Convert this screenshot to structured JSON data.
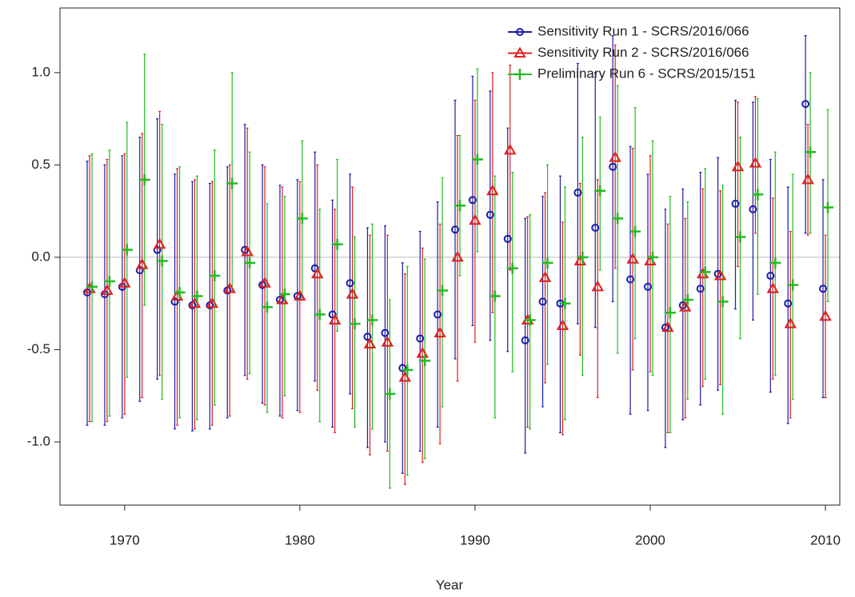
{
  "chart_data": {
    "type": "errorbar",
    "xlabel": "Year",
    "x": [
      1968,
      1969,
      1970,
      1971,
      1972,
      1973,
      1974,
      1975,
      1976,
      1977,
      1978,
      1979,
      1980,
      1981,
      1982,
      1983,
      1984,
      1985,
      1986,
      1987,
      1988,
      1989,
      1990,
      1991,
      1992,
      1993,
      1994,
      1995,
      1996,
      1997,
      1998,
      1999,
      2000,
      2001,
      2002,
      2003,
      2004,
      2005,
      2006,
      2007,
      2008,
      2009,
      2010
    ],
    "xlim": [
      1966.31,
      2010.82
    ],
    "ylim": [
      -1.342,
      1.35
    ],
    "xticks": [
      1970,
      1980,
      1990,
      2000,
      2010
    ],
    "yticks": [
      {
        "value": -1.0,
        "label": "-1.0"
      },
      -0.5,
      {
        "value": 0.0,
        "label": "0.0"
      },
      0.5,
      {
        "value": 1.0,
        "label": "1.0"
      }
    ],
    "hline": 0,
    "legend": "top-right",
    "series": [
      {
        "name": "Sensitivity Run 1 - SCRS/2016/066",
        "color": "#1c1ca8",
        "marker": "circle",
        "values": [
          -0.19,
          -0.2,
          -0.16,
          -0.07,
          0.04,
          -0.24,
          -0.26,
          -0.26,
          -0.18,
          0.04,
          -0.15,
          -0.23,
          -0.21,
          -0.06,
          -0.31,
          -0.14,
          -0.43,
          -0.41,
          -0.6,
          -0.44,
          -0.31,
          0.15,
          0.31,
          0.23,
          0.1,
          -0.45,
          -0.24,
          -0.25,
          0.35,
          0.16,
          0.49,
          -0.12,
          -0.16,
          -0.38,
          -0.26,
          -0.17,
          -0.09,
          0.29,
          0.26,
          -0.1,
          -0.25,
          0.83,
          -0.17
        ],
        "lower": [
          -0.91,
          -0.91,
          -0.87,
          -0.78,
          -0.66,
          -0.93,
          -0.94,
          -0.93,
          -0.87,
          -0.64,
          -0.79,
          -0.86,
          -0.83,
          -0.67,
          -0.92,
          -0.74,
          -1.03,
          -1.0,
          -1.17,
          -1.05,
          -0.92,
          -0.55,
          -0.37,
          -0.45,
          -0.51,
          -1.06,
          -0.81,
          -0.95,
          -0.36,
          -0.38,
          -0.24,
          -0.85,
          -0.83,
          -1.03,
          -0.88,
          -0.8,
          -0.72,
          -0.28,
          -0.34,
          -0.73,
          -0.9,
          0.13,
          -0.76
        ],
        "upper": [
          0.52,
          0.5,
          0.55,
          0.65,
          0.75,
          0.45,
          0.41,
          0.4,
          0.49,
          0.72,
          0.5,
          0.39,
          0.42,
          0.57,
          0.31,
          0.45,
          0.16,
          0.17,
          -0.03,
          0.14,
          0.3,
          0.85,
          0.98,
          0.9,
          0.7,
          0.21,
          0.33,
          0.44,
          1.05,
          1.0,
          1.2,
          0.6,
          0.45,
          0.26,
          0.37,
          0.46,
          0.54,
          0.85,
          0.84,
          0.53,
          0.38,
          1.2,
          0.42
        ]
      },
      {
        "name": "Sensitivity Run 2 - SCRS/2016/066",
        "color": "#e0201e",
        "marker": "triangle",
        "values": [
          -0.17,
          -0.18,
          -0.14,
          -0.04,
          0.07,
          -0.21,
          -0.25,
          -0.25,
          -0.17,
          0.03,
          -0.14,
          -0.23,
          -0.21,
          -0.09,
          -0.34,
          -0.2,
          -0.47,
          -0.46,
          -0.65,
          -0.52,
          -0.41,
          0.0,
          0.2,
          0.36,
          0.58,
          -0.34,
          -0.11,
          -0.37,
          -0.02,
          -0.16,
          0.54,
          -0.01,
          -0.02,
          -0.38,
          -0.27,
          -0.09,
          -0.1,
          0.49,
          0.51,
          -0.17,
          -0.36,
          0.42,
          -0.32
        ],
        "lower": [
          -0.89,
          -0.89,
          -0.85,
          -0.76,
          -0.64,
          -0.91,
          -0.93,
          -0.91,
          -0.86,
          -0.66,
          -0.8,
          -0.87,
          -0.84,
          -0.72,
          -0.95,
          -0.82,
          -1.07,
          -1.05,
          -1.23,
          -1.11,
          -1.01,
          -0.67,
          -0.46,
          -0.3,
          -0.07,
          -0.92,
          -0.68,
          -0.96,
          -0.53,
          -0.76,
          -0.06,
          -0.61,
          -0.62,
          -0.95,
          -0.87,
          -0.7,
          -0.69,
          -0.05,
          0.13,
          -0.66,
          -0.87,
          0.12,
          -0.76
        ],
        "upper": [
          0.55,
          0.53,
          0.56,
          0.67,
          0.79,
          0.48,
          0.42,
          0.41,
          0.5,
          0.7,
          0.49,
          0.38,
          0.41,
          0.5,
          0.26,
          0.38,
          0.12,
          0.12,
          -0.09,
          0.05,
          0.18,
          0.66,
          0.85,
          1.0,
          1.04,
          0.22,
          0.35,
          0.19,
          0.4,
          0.42,
          1.15,
          0.59,
          0.55,
          0.18,
          0.21,
          0.37,
          0.36,
          0.84,
          0.87,
          0.32,
          0.14,
          0.72,
          0.12
        ]
      },
      {
        "name": "Preliminary Run 6 - SCRS/2015/151",
        "color": "#22bb22",
        "marker": "plus",
        "values": [
          -0.16,
          -0.13,
          0.04,
          0.42,
          -0.02,
          -0.19,
          -0.21,
          -0.1,
          0.4,
          -0.03,
          -0.27,
          -0.2,
          0.21,
          -0.31,
          0.07,
          -0.36,
          -0.34,
          -0.74,
          -0.61,
          -0.56,
          -0.18,
          0.28,
          0.53,
          -0.21,
          -0.06,
          -0.34,
          -0.03,
          -0.25,
          0.0,
          0.36,
          0.21,
          0.14,
          0.0,
          -0.3,
          -0.23,
          -0.08,
          -0.24,
          0.11,
          0.34,
          -0.03,
          -0.15,
          0.57,
          0.27
        ],
        "lower": [
          -0.89,
          -0.86,
          -0.65,
          -0.26,
          -0.77,
          -0.87,
          -0.88,
          -0.8,
          -0.19,
          -0.63,
          -0.84,
          -0.75,
          -0.22,
          -0.89,
          -0.4,
          -0.92,
          -0.93,
          -1.25,
          -1.18,
          -1.09,
          -0.81,
          -0.1,
          0.03,
          -0.87,
          -0.62,
          -0.93,
          -0.58,
          -0.88,
          -0.64,
          -0.07,
          -0.52,
          -0.44,
          -0.64,
          -0.95,
          -0.77,
          -0.66,
          -0.85,
          -0.44,
          -0.2,
          -0.64,
          -0.77,
          0.13,
          -0.24
        ],
        "upper": [
          0.56,
          0.58,
          0.73,
          1.1,
          0.72,
          0.49,
          0.44,
          0.58,
          1.0,
          0.57,
          0.29,
          0.33,
          0.63,
          0.26,
          0.53,
          0.11,
          0.18,
          -0.23,
          -0.05,
          -0.01,
          0.43,
          0.66,
          1.02,
          0.44,
          0.46,
          0.23,
          0.5,
          0.38,
          0.65,
          0.76,
          0.93,
          0.81,
          0.63,
          0.33,
          0.3,
          0.48,
          0.39,
          0.65,
          0.86,
          0.57,
          0.45,
          1.0,
          0.8
        ]
      }
    ]
  }
}
